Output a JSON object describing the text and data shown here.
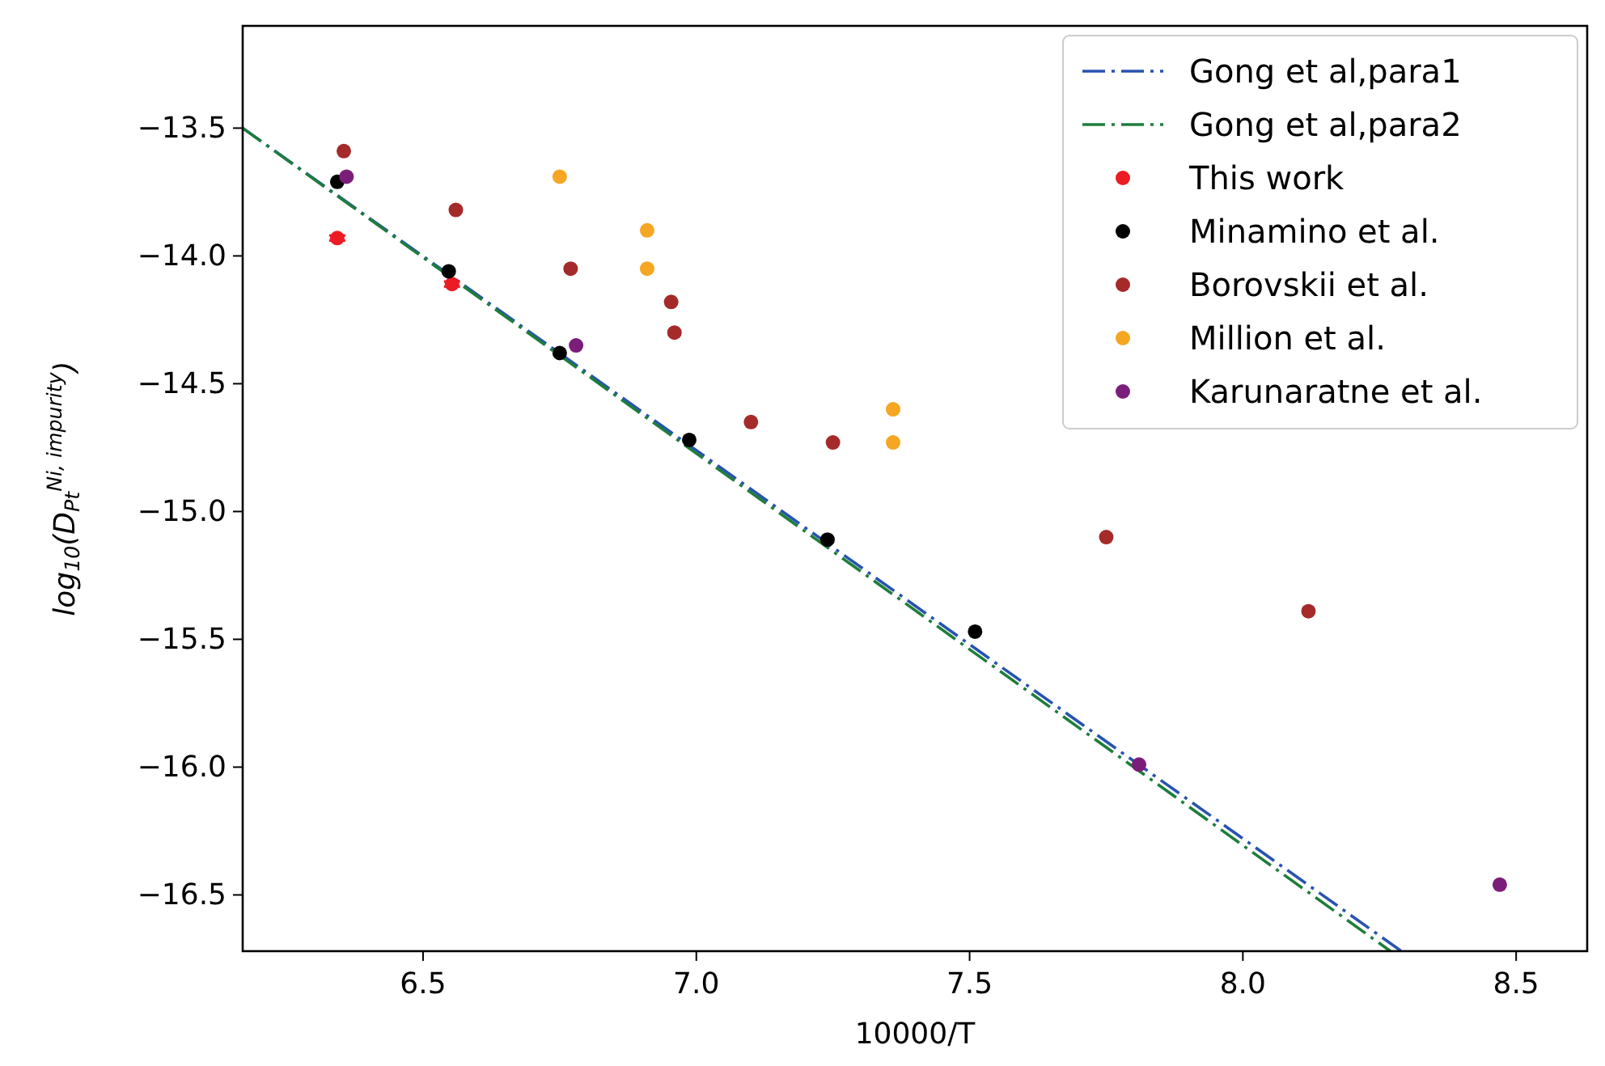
{
  "chart_data": {
    "type": "scatter",
    "xlabel": "10000/T",
    "ylabel": "log$_{10}$(D$_{Pt}$$^{Ni, impurity}$)",
    "xlim": [
      6.17,
      8.63
    ],
    "ylim": [
      -16.72,
      -13.1
    ],
    "xticks": [
      6.5,
      {
        "value": 7,
        "label": "7.0"
      },
      7.5,
      {
        "value": 8,
        "label": "8.0"
      },
      8.5
    ],
    "yticks": [
      {
        "value": -13.5,
        "label": "−13.5"
      },
      {
        "value": -14,
        "label": "−14.0"
      },
      {
        "value": -14.5,
        "label": "−14.5"
      },
      {
        "value": -15,
        "label": "−15.0"
      },
      {
        "value": -15.5,
        "label": "−15.5"
      },
      {
        "value": -16,
        "label": "−16.0"
      },
      {
        "value": -16.5,
        "label": "−16.5"
      }
    ],
    "grid": false,
    "legend": "top right",
    "marker": "circle",
    "series": [
      {
        "name": "Gong et al,para1",
        "type": "line",
        "marker": "none",
        "line_style": "dashed",
        "color": "#2753b0",
        "x": [
          6.17,
          8.29
        ],
        "values": [
          -13.5,
          -16.72
        ]
      },
      {
        "name": "Gong et al,para2",
        "type": "line",
        "marker": "none",
        "line_style": "dashed",
        "color": "#1e7d3c",
        "x": [
          6.17,
          8.27
        ],
        "values": [
          -13.5,
          -16.72
        ]
      },
      {
        "name": "This work",
        "color": "#ec1c24",
        "x": [
          6.343,
          6.553
        ],
        "values": [
          -13.93,
          -14.11
        ],
        "errors": [
          0.01,
          0.01
        ]
      },
      {
        "name": "Minamino et al.",
        "color": "#000000",
        "x": [
          6.343,
          6.547,
          6.75,
          6.987,
          7.24,
          7.51
        ],
        "values": [
          -13.71,
          -14.06,
          -14.38,
          -14.72,
          -15.11,
          -15.47
        ]
      },
      {
        "name": "Borovskii et al.",
        "color": "#a52a2a",
        "x": [
          6.355,
          6.56,
          6.77,
          6.954,
          6.96,
          7.1,
          7.25,
          7.75,
          8.12
        ],
        "values": [
          -13.59,
          -13.82,
          -14.05,
          -14.18,
          -14.3,
          -14.65,
          -14.73,
          -15.1,
          -15.39
        ]
      },
      {
        "name": "Million et al.",
        "color": "#f5a623",
        "x": [
          6.75,
          6.91,
          6.91,
          7.36,
          7.36
        ],
        "values": [
          -13.69,
          -13.9,
          -14.05,
          -14.6,
          -14.73
        ]
      },
      {
        "name": "Karunaratne et al.",
        "color": "#7b1e7a",
        "x": [
          6.36,
          6.78,
          7.81,
          8.47
        ],
        "values": [
          -13.69,
          -14.35,
          -15.99,
          -16.46
        ]
      }
    ]
  }
}
